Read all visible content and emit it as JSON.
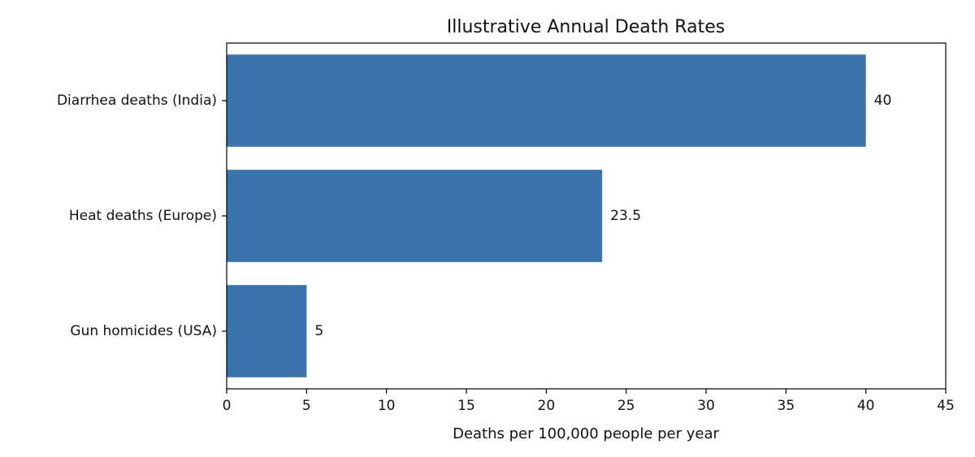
{
  "chart_data": {
    "type": "bar",
    "orientation": "horizontal",
    "title": "Illustrative Annual Death Rates",
    "xlabel": "Deaths per 100,000 people per year",
    "ylabel": "",
    "categories": [
      "Diarrhea deaths (India)",
      "Heat deaths (Europe)",
      "Gun homicides (USA)"
    ],
    "values": [
      40,
      23.5,
      5
    ],
    "value_labels": [
      "40",
      "23.5",
      "5"
    ],
    "xlim": [
      0,
      45
    ],
    "xticks": [
      0,
      5,
      10,
      15,
      20,
      25,
      30,
      35,
      40,
      45
    ],
    "xtick_labels": [
      "0",
      "5",
      "10",
      "15",
      "20",
      "25",
      "30",
      "35",
      "40",
      "45"
    ],
    "grid": false,
    "bar_color": "#3b74ab"
  }
}
